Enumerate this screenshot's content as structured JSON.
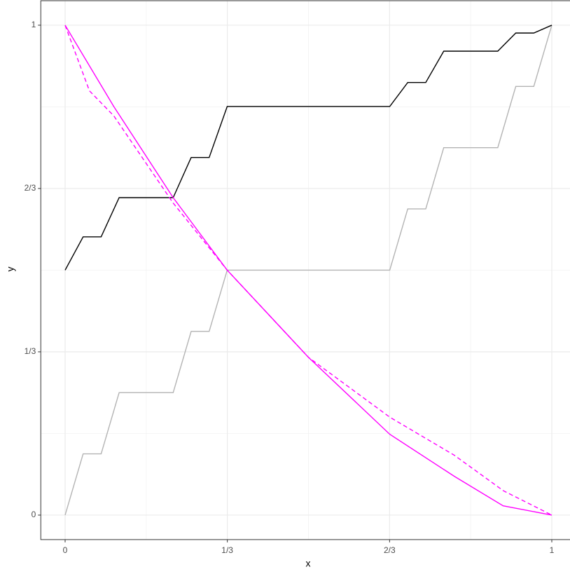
{
  "chart_data": {
    "type": "line",
    "x_label": "x",
    "y_label": "y",
    "xlim": [
      -0.05,
      1.05
    ],
    "ylim": [
      -0.05,
      1.05
    ],
    "xticks": [
      0,
      {
        "value": 0.3333,
        "label": "1/3"
      },
      {
        "value": 0.6667,
        "label": "2/3"
      },
      1
    ],
    "yticks": [
      0,
      {
        "value": 0.3333,
        "label": "1/3"
      },
      {
        "value": 0.6667,
        "label": "2/3"
      },
      1
    ],
    "minor_xticks": [
      0.1667,
      0.5,
      0.8333
    ],
    "minor_yticks": [
      0.1667,
      0.5,
      0.8333
    ],
    "grid": true,
    "series": [
      {
        "color": "#b3b3b3",
        "dash": "solid",
        "x": [
          0,
          0.037,
          0.074,
          0.111,
          0.222,
          0.259,
          0.296,
          0.333,
          0.667,
          0.704,
          0.741,
          0.778,
          0.889,
          0.926,
          0.963,
          1
        ],
        "values": [
          0,
          0.125,
          0.125,
          0.25,
          0.25,
          0.375,
          0.375,
          0.5,
          0.5,
          0.625,
          0.625,
          0.75,
          0.75,
          0.875,
          0.875,
          1
        ]
      },
      {
        "color": "#000000",
        "dash": "solid",
        "x": [
          0,
          0.037,
          0.074,
          0.111,
          0.222,
          0.259,
          0.296,
          0.333,
          0.667,
          0.704,
          0.741,
          0.778,
          0.889,
          0.926,
          0.963,
          1
        ],
        "values": [
          0.5,
          0.568,
          0.568,
          0.648,
          0.648,
          0.73,
          0.73,
          0.834,
          0.834,
          0.883,
          0.883,
          0.947,
          0.947,
          0.984,
          0.984,
          1
        ]
      },
      {
        "color": "#ff00ff",
        "dash": "dashed",
        "x": [
          0,
          0.05,
          0.1,
          0.222,
          0.333,
          0.5,
          0.667,
          0.8,
          0.9,
          1
        ],
        "values": [
          1,
          0.866,
          0.815,
          0.637,
          0.5,
          0.322,
          0.2,
          0.122,
          0.05,
          0
        ]
      },
      {
        "color": "#ff00ff",
        "dash": "solid",
        "x": [
          0,
          0.1,
          0.222,
          0.333,
          0.5,
          0.667,
          0.8,
          0.9,
          1
        ],
        "values": [
          1,
          0.834,
          0.648,
          0.5,
          0.322,
          0.165,
          0.079,
          0.019,
          0
        ]
      }
    ]
  }
}
